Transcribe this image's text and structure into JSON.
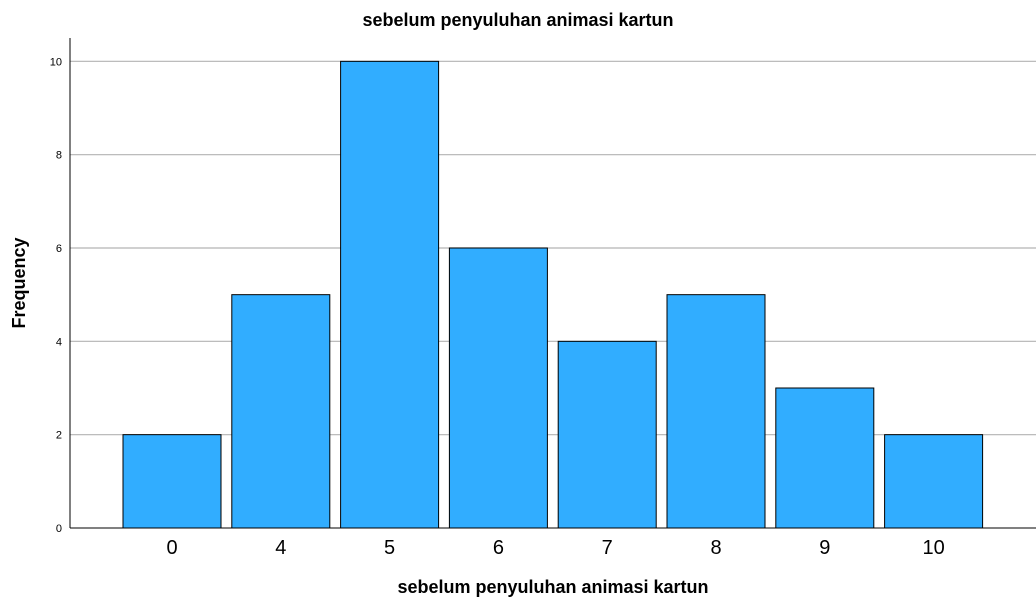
{
  "chart_data": {
    "type": "bar",
    "title": "sebelum penyuluhan animasi kartun",
    "xlabel": "sebelum penyuluhan animasi kartun",
    "ylabel": "Frequency",
    "categories": [
      "0",
      "4",
      "5",
      "6",
      "7",
      "8",
      "9",
      "10"
    ],
    "values": [
      2,
      5,
      10,
      6,
      4,
      5,
      3,
      2
    ],
    "ylim": [
      0,
      10.5
    ],
    "yticks": [
      "0",
      "2",
      "4",
      "6",
      "8",
      "10"
    ],
    "grid": true,
    "bar_color": "#31adff",
    "gridline_color": "#b3b3b3"
  }
}
